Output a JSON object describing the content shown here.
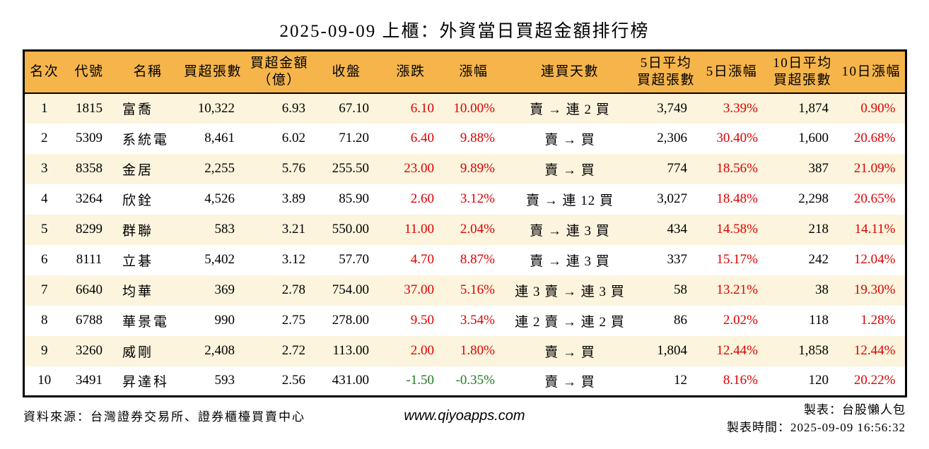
{
  "title": "2025-09-09 上櫃：外資當日買超金額排行榜",
  "colors": {
    "header_bg": "#F5B54B",
    "row_alt_bg": "#FCF4DD",
    "up_red": "#DD0000",
    "down_green": "#1E7D1E",
    "border": "#000000"
  },
  "chart_data": {
    "type": "table",
    "title": "2025-09-09 上櫃：外資當日買超金額排行榜",
    "columns": [
      {
        "key": "rank",
        "label": "名次",
        "label_lines": [
          "名次"
        ]
      },
      {
        "key": "code",
        "label": "代號",
        "label_lines": [
          "代號"
        ]
      },
      {
        "key": "name",
        "label": "名稱",
        "label_lines": [
          "名稱"
        ]
      },
      {
        "key": "volume",
        "label": "買超張數",
        "label_lines": [
          "買超張數"
        ]
      },
      {
        "key": "amount",
        "label": "買超金額（億）",
        "label_lines": [
          "買超金額",
          "（億）"
        ]
      },
      {
        "key": "close",
        "label": "收盤",
        "label_lines": [
          "收盤"
        ]
      },
      {
        "key": "change",
        "label": "漲跌",
        "label_lines": [
          "漲跌"
        ]
      },
      {
        "key": "change_pct",
        "label": "漲幅",
        "label_lines": [
          "漲幅"
        ]
      },
      {
        "key": "streak",
        "label": "連買天數",
        "label_lines": [
          "連買天數"
        ]
      },
      {
        "key": "avg5_volume",
        "label": "5日平均買超張數",
        "label_lines": [
          "5日平均",
          "買超張數"
        ]
      },
      {
        "key": "pct5",
        "label": "5日漲幅",
        "label_lines": [
          "5日漲幅"
        ]
      },
      {
        "key": "avg10_volume",
        "label": "10日平均買超張數",
        "label_lines": [
          "10日平均",
          "買超張數"
        ]
      },
      {
        "key": "pct10",
        "label": "10日漲幅",
        "label_lines": [
          "10日漲幅"
        ]
      }
    ],
    "rows": [
      {
        "rank": "1",
        "code": "1815",
        "name": "富喬",
        "volume": "10,322",
        "amount": "6.93",
        "close": "67.10",
        "change": "6.10",
        "change_pct": "10.00%",
        "streak": "賣 → 連 2 買",
        "avg5_volume": "3,749",
        "pct5": "3.39%",
        "avg10_volume": "1,874",
        "pct10": "0.90%"
      },
      {
        "rank": "2",
        "code": "5309",
        "name": "系統電",
        "volume": "8,461",
        "amount": "6.02",
        "close": "71.20",
        "change": "6.40",
        "change_pct": "9.88%",
        "streak": "賣 → 買",
        "avg5_volume": "2,306",
        "pct5": "30.40%",
        "avg10_volume": "1,600",
        "pct10": "20.68%"
      },
      {
        "rank": "3",
        "code": "8358",
        "name": "金居",
        "volume": "2,255",
        "amount": "5.76",
        "close": "255.50",
        "change": "23.00",
        "change_pct": "9.89%",
        "streak": "賣 → 買",
        "avg5_volume": "774",
        "pct5": "18.56%",
        "avg10_volume": "387",
        "pct10": "21.09%"
      },
      {
        "rank": "4",
        "code": "3264",
        "name": "欣銓",
        "volume": "4,526",
        "amount": "3.89",
        "close": "85.90",
        "change": "2.60",
        "change_pct": "3.12%",
        "streak": "賣 → 連 12 買",
        "avg5_volume": "3,027",
        "pct5": "18.48%",
        "avg10_volume": "2,298",
        "pct10": "20.65%"
      },
      {
        "rank": "5",
        "code": "8299",
        "name": "群聯",
        "volume": "583",
        "amount": "3.21",
        "close": "550.00",
        "change": "11.00",
        "change_pct": "2.04%",
        "streak": "賣 → 連 3 買",
        "avg5_volume": "434",
        "pct5": "14.58%",
        "avg10_volume": "218",
        "pct10": "14.11%"
      },
      {
        "rank": "6",
        "code": "8111",
        "name": "立碁",
        "volume": "5,402",
        "amount": "3.12",
        "close": "57.70",
        "change": "4.70",
        "change_pct": "8.87%",
        "streak": "賣 → 連 3 買",
        "avg5_volume": "337",
        "pct5": "15.17%",
        "avg10_volume": "242",
        "pct10": "12.04%"
      },
      {
        "rank": "7",
        "code": "6640",
        "name": "均華",
        "volume": "369",
        "amount": "2.78",
        "close": "754.00",
        "change": "37.00",
        "change_pct": "5.16%",
        "streak": "連 3 賣 → 連 3 買",
        "avg5_volume": "58",
        "pct5": "13.21%",
        "avg10_volume": "38",
        "pct10": "19.30%"
      },
      {
        "rank": "8",
        "code": "6788",
        "name": "華景電",
        "volume": "990",
        "amount": "2.75",
        "close": "278.00",
        "change": "9.50",
        "change_pct": "3.54%",
        "streak": "連 2 賣 → 連 2 買",
        "avg5_volume": "86",
        "pct5": "2.02%",
        "avg10_volume": "118",
        "pct10": "1.28%"
      },
      {
        "rank": "9",
        "code": "3260",
        "name": "威剛",
        "volume": "2,408",
        "amount": "2.72",
        "close": "113.00",
        "change": "2.00",
        "change_pct": "1.80%",
        "streak": "賣 → 買",
        "avg5_volume": "1,804",
        "pct5": "12.44%",
        "avg10_volume": "1,858",
        "pct10": "12.44%"
      },
      {
        "rank": "10",
        "code": "3491",
        "name": "昇達科",
        "volume": "593",
        "amount": "2.56",
        "close": "431.00",
        "change": "-1.50",
        "change_pct": "-0.35%",
        "streak": "賣 → 買",
        "avg5_volume": "12",
        "pct5": "8.16%",
        "avg10_volume": "120",
        "pct10": "20.22%"
      }
    ]
  },
  "footer": {
    "source": "資料來源：台灣證券交易所、證券櫃檯買賣中心",
    "website": "www.qiyoapps.com",
    "maker": "製表：台股懶人包",
    "generated_at": "製表時間：2025-09-09 16:56:32"
  }
}
